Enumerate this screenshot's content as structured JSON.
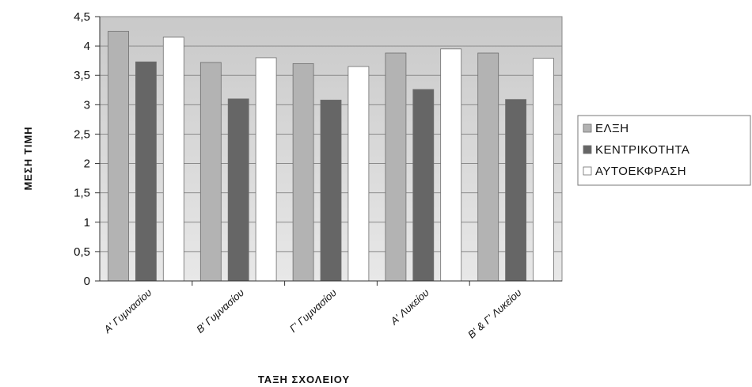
{
  "chart_data": {
    "type": "bar",
    "ylabel": "ΜΕΣΗ ΤΙΜΗ",
    "xlabel": "ΤΑΞΗ ΣΧΟΛΕΙΟΥ",
    "categories": [
      "Α' Γυμνασίου",
      "Β' Γυμνασίου",
      "Γ' Γυμνασίου",
      "Α' Λυκείου",
      "Β' & Γ' Λυκείου"
    ],
    "series": [
      {
        "name": "ΕΛΞΗ",
        "values": [
          4.25,
          3.72,
          3.7,
          3.88,
          3.88
        ],
        "color": "#b3b3b3"
      },
      {
        "name": "ΚΕΝΤΡΙΚΟΤΗΤΑ",
        "values": [
          3.73,
          3.1,
          3.08,
          3.26,
          3.09
        ],
        "color": "#666666"
      },
      {
        "name": "ΑΥΤΟΕΚΦΡΑΣΗ",
        "values": [
          4.15,
          3.8,
          3.65,
          3.95,
          3.79
        ],
        "color": "#ffffff"
      }
    ],
    "ylim": [
      0,
      4.5
    ],
    "yticks": [
      "0",
      "0,5",
      "1",
      "1,5",
      "2",
      "2,5",
      "3",
      "3,5",
      "4",
      "4,5"
    ],
    "grid": true,
    "legend": "right",
    "plot_background": "#d9d9d9"
  }
}
